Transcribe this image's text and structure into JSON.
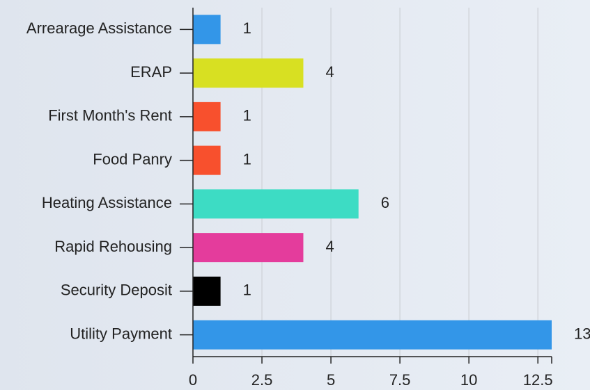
{
  "chart_data": {
    "type": "bar",
    "orientation": "horizontal",
    "categories": [
      "Arrearage Assistance",
      "ERAP",
      "First Month's Rent",
      "Food Panry",
      "Heating Assistance",
      "Rapid Rehousing",
      "Security Deposit",
      "Utility Payment"
    ],
    "values": [
      1,
      4,
      1,
      1,
      6,
      4,
      1,
      13
    ],
    "colors": [
      "#3396e8",
      "#d8e022",
      "#f8502d",
      "#f8502d",
      "#3ddcc4",
      "#e43c9c",
      "#000000",
      "#3396e8"
    ],
    "xlim": [
      0,
      13
    ],
    "xticks": [
      0,
      2.5,
      5,
      7.5,
      10,
      12.5
    ],
    "grid": true
  }
}
